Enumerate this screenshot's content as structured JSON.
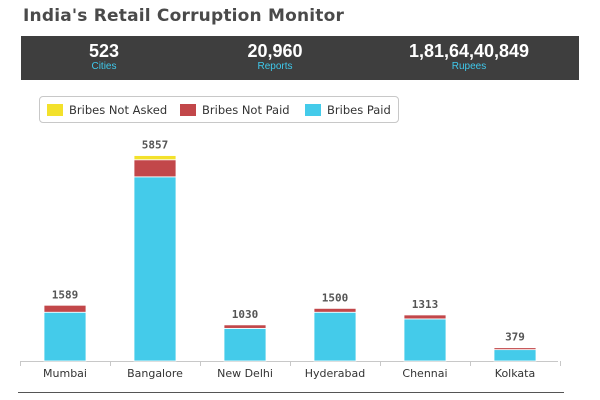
{
  "title": "India's Retail Corruption Monitor",
  "stats": [
    {
      "value": "523",
      "label": "Cities"
    },
    {
      "value": "20,960",
      "label": "Reports"
    },
    {
      "value": "1,81,64,40,849",
      "label": "Rupees"
    }
  ],
  "colors": {
    "bribes_not_asked": "#f3e12b",
    "bribes_not_paid": "#c2474a",
    "bribes_paid": "#44cbea",
    "header_bg": "#3e3e3e",
    "stat_label": "#3fc9ec"
  },
  "chart_data": {
    "type": "bar",
    "stacked": true,
    "categories": [
      "Mumbai",
      "Bangalore",
      "New Delhi",
      "Hyderabad",
      "Chennai",
      "Kolkata"
    ],
    "totals": [
      1589,
      5857,
      1030,
      1500,
      1313,
      379
    ],
    "series": [
      {
        "name": "Bribes Paid",
        "values": [
          1390,
          5250,
          930,
          1390,
          1200,
          324
        ]
      },
      {
        "name": "Bribes Not Paid",
        "values": [
          199,
          487,
          100,
          110,
          113,
          55
        ]
      },
      {
        "name": "Bribes Not Asked",
        "values": [
          0,
          120,
          0,
          0,
          0,
          0
        ]
      }
    ],
    "legend_order": [
      "Bribes Not Asked",
      "Bribes Not Paid",
      "Bribes Paid"
    ],
    "ylim": [
      0,
      6300
    ],
    "legend_position": "top-left",
    "grid": false
  }
}
